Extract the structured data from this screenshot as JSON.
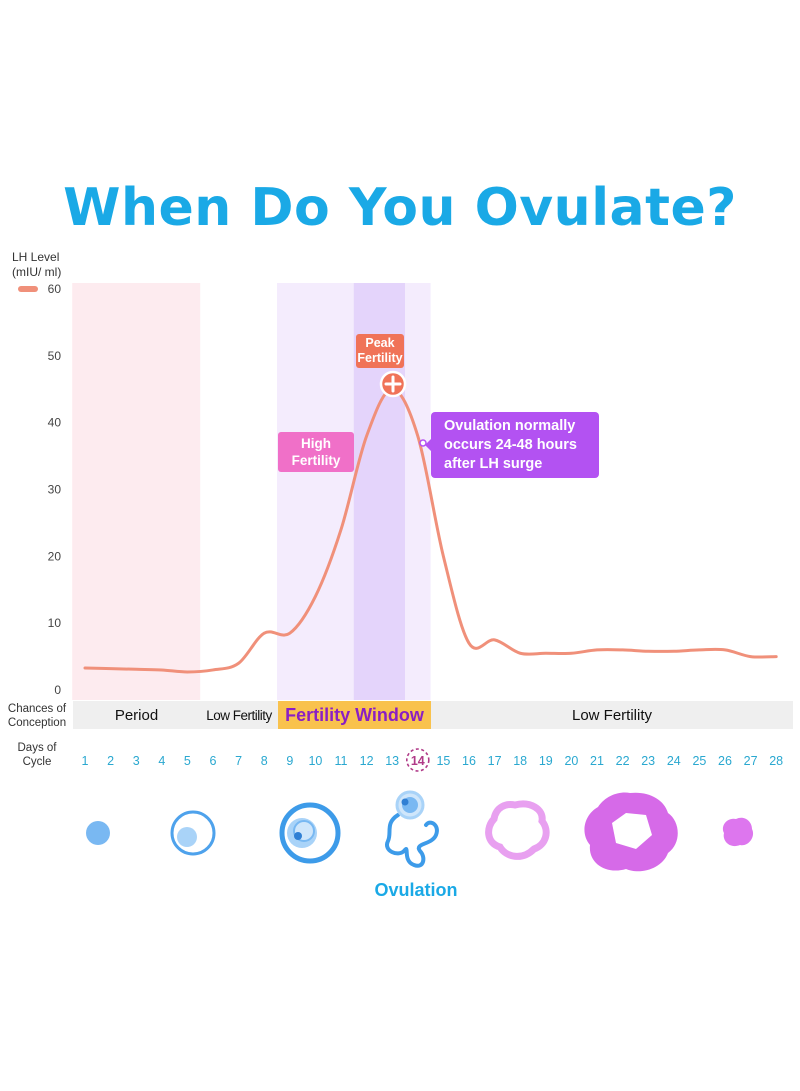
{
  "title": "When Do You Ovulate?",
  "colors": {
    "title": "#1aa9e6",
    "lh_line": "#f0907a",
    "period_bg": "#fdebef",
    "fertile_bg": "#f4ecfd",
    "peak_bg": "#e4d4fb",
    "peak_callout": "#f07358",
    "high_callout": "#f070c8",
    "ovulation_callout": "#b352f2",
    "fertility_window_band": "#f9c24d",
    "fertility_window_text": "#8a1fc4",
    "day_numbers": "#2aa8d0",
    "day_14_circle": "#b03a88"
  },
  "chart_data": {
    "type": "line",
    "ylabel": "LH Level\n(mIU/ ml)",
    "ylim": [
      0,
      60
    ],
    "yticks": [
      0,
      10,
      20,
      30,
      40,
      50,
      60
    ],
    "xlabel": "Days of\nCycle",
    "x": [
      1,
      2,
      3,
      4,
      5,
      6,
      7,
      8,
      9,
      10,
      11,
      12,
      13,
      14,
      15,
      16,
      17,
      18,
      19,
      20,
      21,
      22,
      23,
      24,
      25,
      26,
      27,
      28
    ],
    "series": [
      {
        "values": [
          3.3,
          3.2,
          3.1,
          3.0,
          2.7,
          3.0,
          4.0,
          8.5,
          8.5,
          14,
          24,
          38,
          45,
          38,
          20,
          7.0,
          7.5,
          5.5,
          5.5,
          5.5,
          6.0,
          6.0,
          5.8,
          5.8,
          6.0,
          6.0,
          5.0,
          5.0
        ]
      }
    ],
    "legend": "top-left",
    "grid": false,
    "regions": [
      {
        "name": "period",
        "from_day": 1,
        "to_day": 5
      },
      {
        "name": "fertile",
        "from_day": 9,
        "to_day": 14
      },
      {
        "name": "peak",
        "from_day": 12,
        "to_day": 13
      }
    ],
    "annotations": {
      "peak": "Peak\nFertility",
      "high": "High\nFertility",
      "ovulation_note": [
        "Ovulation normally",
        "occurs 24-48 hours",
        "after LH surge"
      ]
    },
    "highlighted_day": 14
  },
  "conception": {
    "label": "Chances of\nConception",
    "bands": {
      "period": "Period",
      "low1": "Low Fertility",
      "window": "Fertility Window",
      "low2": "Low Fertility"
    }
  },
  "days_label": "Days of\nCycle",
  "ovulation_label": "Ovulation",
  "illustration_icons": [
    "small-follicle-icon",
    "growing-follicle-icon",
    "mature-follicle-icon",
    "released-egg-icon",
    "early-corpus-luteum-icon",
    "corpus-luteum-icon",
    "shrinking-corpus-luteum-icon"
  ]
}
